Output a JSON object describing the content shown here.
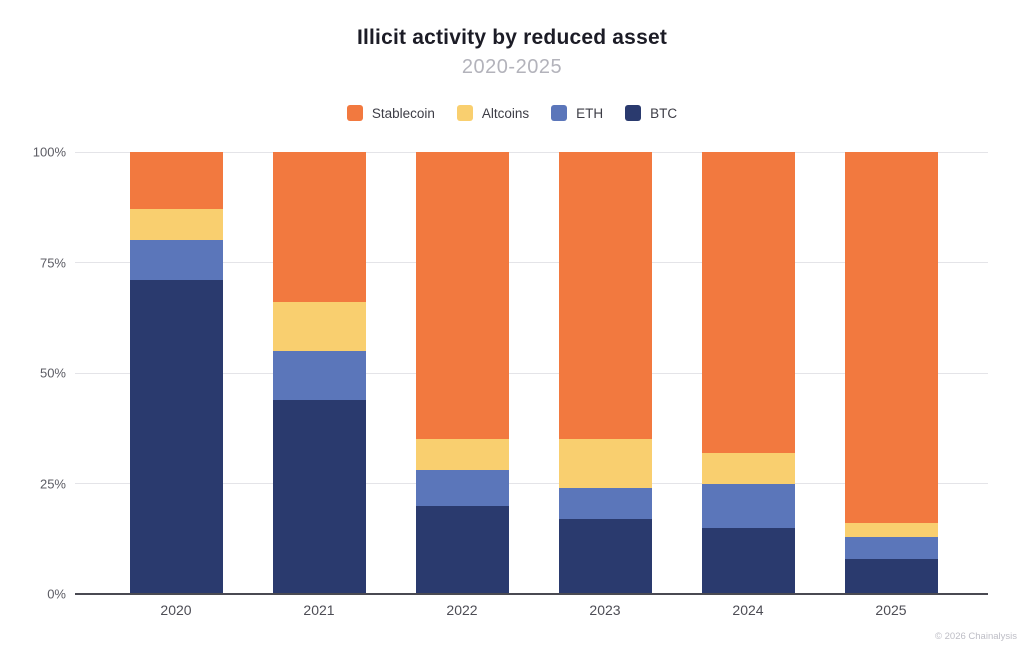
{
  "page": {
    "footer": "© 2026 Chainalysis"
  },
  "chart_data": {
    "type": "bar",
    "stacked": true,
    "title": "Illicit activity by reduced asset",
    "subtitle": "2020-2025",
    "categories": [
      "2020",
      "2021",
      "2022",
      "2023",
      "2024",
      "2025"
    ],
    "series": [
      {
        "name": "Stablecoin",
        "color": "#F2793F",
        "values": [
          13,
          34,
          65,
          65,
          68,
          84
        ]
      },
      {
        "name": "Altcoins",
        "color": "#F9CF6F",
        "values": [
          7,
          11,
          7,
          11,
          7,
          3
        ]
      },
      {
        "name": "ETH",
        "color": "#5B76BA",
        "values": [
          9,
          11,
          8,
          7,
          10,
          5
        ]
      },
      {
        "name": "BTC",
        "color": "#2A3A6E",
        "values": [
          71,
          44,
          20,
          17,
          15,
          8
        ]
      }
    ],
    "stack_order_bottom_to_top": [
      "BTC",
      "ETH",
      "Altcoins",
      "Stablecoin"
    ],
    "xlabel": "",
    "ylabel": "",
    "ylim": [
      0,
      100
    ],
    "yticks": [
      {
        "value": 0,
        "label": "0%"
      },
      {
        "value": 25,
        "label": "25%"
      },
      {
        "value": 50,
        "label": "50%"
      },
      {
        "value": 75,
        "label": "75%"
      },
      {
        "value": 100,
        "label": "100%"
      }
    ],
    "grid": true,
    "legend_position": "top"
  }
}
